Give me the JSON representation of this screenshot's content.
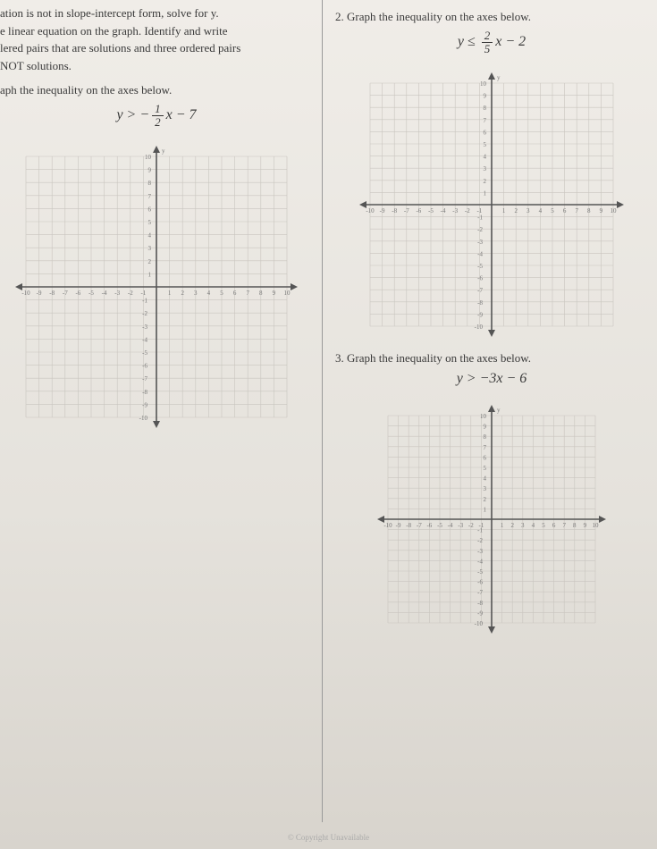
{
  "left": {
    "instructions": [
      "ation is not in slope-intercept form, solve for y.",
      "e linear equation on the graph. Identify and write",
      "lered pairs that are solutions and three ordered pairs",
      "NOT solutions."
    ],
    "p1": {
      "prompt": "aph the inequality on the axes below.",
      "eq_prefix": "y > −",
      "frac_num": "1",
      "frac_den": "2",
      "eq_suffix": "x − 7"
    }
  },
  "right": {
    "p2": {
      "number": "2.",
      "prompt": "Graph the inequality on the axes below.",
      "eq_prefix": "y ≤ ",
      "frac_num": "2",
      "frac_den": "5",
      "eq_suffix": "x − 2"
    },
    "p3": {
      "number": "3.",
      "prompt": "Graph the inequality on the axes below.",
      "eq_full": "y > −3x − 6"
    }
  },
  "grid_style": {
    "size_large": 320,
    "size_med": 300,
    "size_small": 260,
    "cells": 20,
    "axis_color": "#555555",
    "grid_color": "#c9c5bf",
    "bg_color": "transparent",
    "tick_font": 7,
    "arrow_size": 8
  },
  "footer": "© Copyright Unavailable"
}
